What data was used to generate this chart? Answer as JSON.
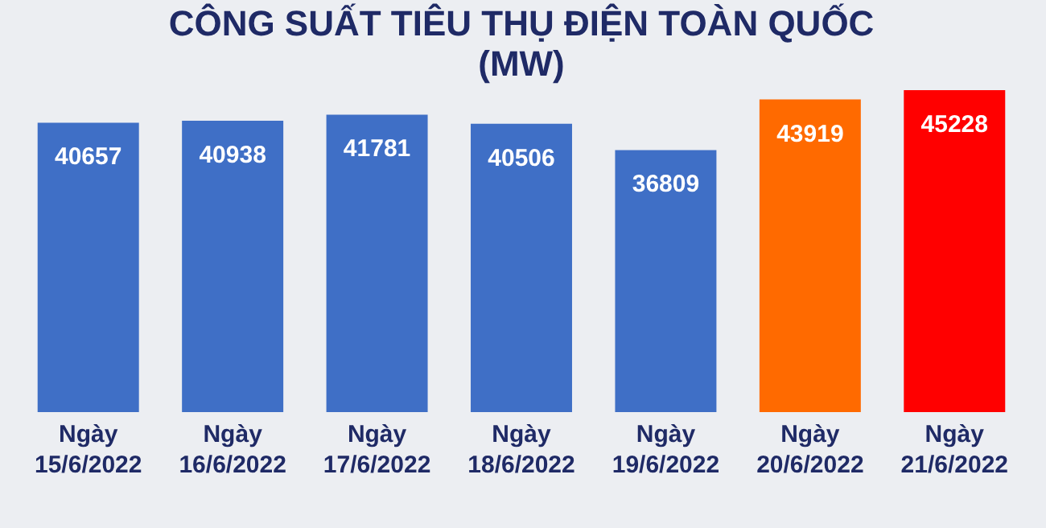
{
  "chart_data": {
    "type": "bar",
    "title": "CÔNG SUẤT TIÊU THỤ ĐIỆN TOÀN QUỐC",
    "subtitle": "(MW)",
    "categories": [
      "Ngày 15/6/2022",
      "Ngày 16/6/2022",
      "Ngày 17/6/2022",
      "Ngày 18/6/2022",
      "Ngày 19/6/2022",
      "Ngày 20/6/2022",
      "Ngày 21/6/2022"
    ],
    "values": [
      40657,
      40938,
      41781,
      40506,
      36809,
      43919,
      45228
    ],
    "colors": [
      "#3f6fc6",
      "#3f6fc6",
      "#3f6fc6",
      "#3f6fc6",
      "#3f6fc6",
      "#ff6a00",
      "#ff0000"
    ],
    "tick_labels": "x",
    "data_labels": true
  }
}
